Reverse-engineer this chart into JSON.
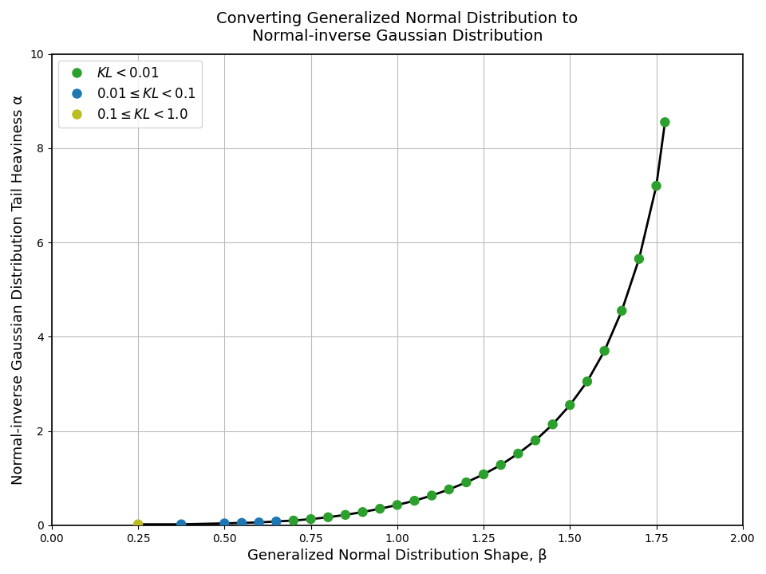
{
  "title": "Converting Generalized Normal Distribution to\nNormal-inverse Gaussian Distribution",
  "xlabel": "Generalized Normal Distribution Shape, β",
  "ylabel": "Normal-inverse Gaussian Distribution Tail Heaviness α",
  "xlim": [
    0.0,
    2.0
  ],
  "ylim": [
    0,
    10
  ],
  "xticks": [
    0.0,
    0.25,
    0.5,
    0.75,
    1.0,
    1.25,
    1.5,
    1.75,
    2.0
  ],
  "yticks": [
    0,
    2,
    4,
    6,
    8,
    10
  ],
  "scatter_points": [
    {
      "beta": 0.25,
      "alpha": 0.02,
      "kl": 0.5
    },
    {
      "beta": 0.375,
      "alpha": 0.02,
      "kl": 0.08
    },
    {
      "beta": 0.5,
      "alpha": 0.04,
      "kl": 0.04
    },
    {
      "beta": 0.55,
      "alpha": 0.05,
      "kl": 0.025
    },
    {
      "beta": 0.6,
      "alpha": 0.06,
      "kl": 0.018
    },
    {
      "beta": 0.65,
      "alpha": 0.08,
      "kl": 0.013
    },
    {
      "beta": 0.7,
      "alpha": 0.1,
      "kl": 0.009
    },
    {
      "beta": 0.75,
      "alpha": 0.13,
      "kl": 0.007
    },
    {
      "beta": 0.8,
      "alpha": 0.17,
      "kl": 0.006
    },
    {
      "beta": 0.85,
      "alpha": 0.22,
      "kl": 0.005
    },
    {
      "beta": 0.9,
      "alpha": 0.28,
      "kl": 0.004
    },
    {
      "beta": 0.95,
      "alpha": 0.35,
      "kl": 0.004
    },
    {
      "beta": 1.0,
      "alpha": 0.43,
      "kl": 0.003
    },
    {
      "beta": 1.05,
      "alpha": 0.52,
      "kl": 0.003
    },
    {
      "beta": 1.1,
      "alpha": 0.63,
      "kl": 0.003
    },
    {
      "beta": 1.15,
      "alpha": 0.76,
      "kl": 0.003
    },
    {
      "beta": 1.2,
      "alpha": 0.91,
      "kl": 0.003
    },
    {
      "beta": 1.25,
      "alpha": 1.08,
      "kl": 0.003
    },
    {
      "beta": 1.3,
      "alpha": 1.28,
      "kl": 0.003
    },
    {
      "beta": 1.35,
      "alpha": 1.52,
      "kl": 0.003
    },
    {
      "beta": 1.4,
      "alpha": 1.8,
      "kl": 0.003
    },
    {
      "beta": 1.45,
      "alpha": 2.14,
      "kl": 0.003
    },
    {
      "beta": 1.5,
      "alpha": 2.55,
      "kl": 0.003
    },
    {
      "beta": 1.55,
      "alpha": 3.05,
      "kl": 0.003
    },
    {
      "beta": 1.6,
      "alpha": 3.7,
      "kl": 0.003
    },
    {
      "beta": 1.65,
      "alpha": 4.55,
      "kl": 0.003
    },
    {
      "beta": 1.7,
      "alpha": 5.65,
      "kl": 0.003
    },
    {
      "beta": 1.75,
      "alpha": 7.2,
      "kl": 0.003
    },
    {
      "beta": 1.775,
      "alpha": 8.55,
      "kl": 0.003
    }
  ],
  "color_green": "#2ca02c",
  "color_blue": "#1f77b4",
  "color_olive": "#bcbd22",
  "legend_labels": [
    "$\\mathit{KL} < 0.01$",
    "$0.01 \\leq \\mathit{KL} < 0.1$",
    "$0.1 \\leq \\mathit{KL} < 1.0$"
  ],
  "legend_colors": [
    "#2ca02c",
    "#1f77b4",
    "#bcbd22"
  ],
  "curve_color": "black",
  "background_color": "white",
  "grid_color": "#bbbbbb"
}
